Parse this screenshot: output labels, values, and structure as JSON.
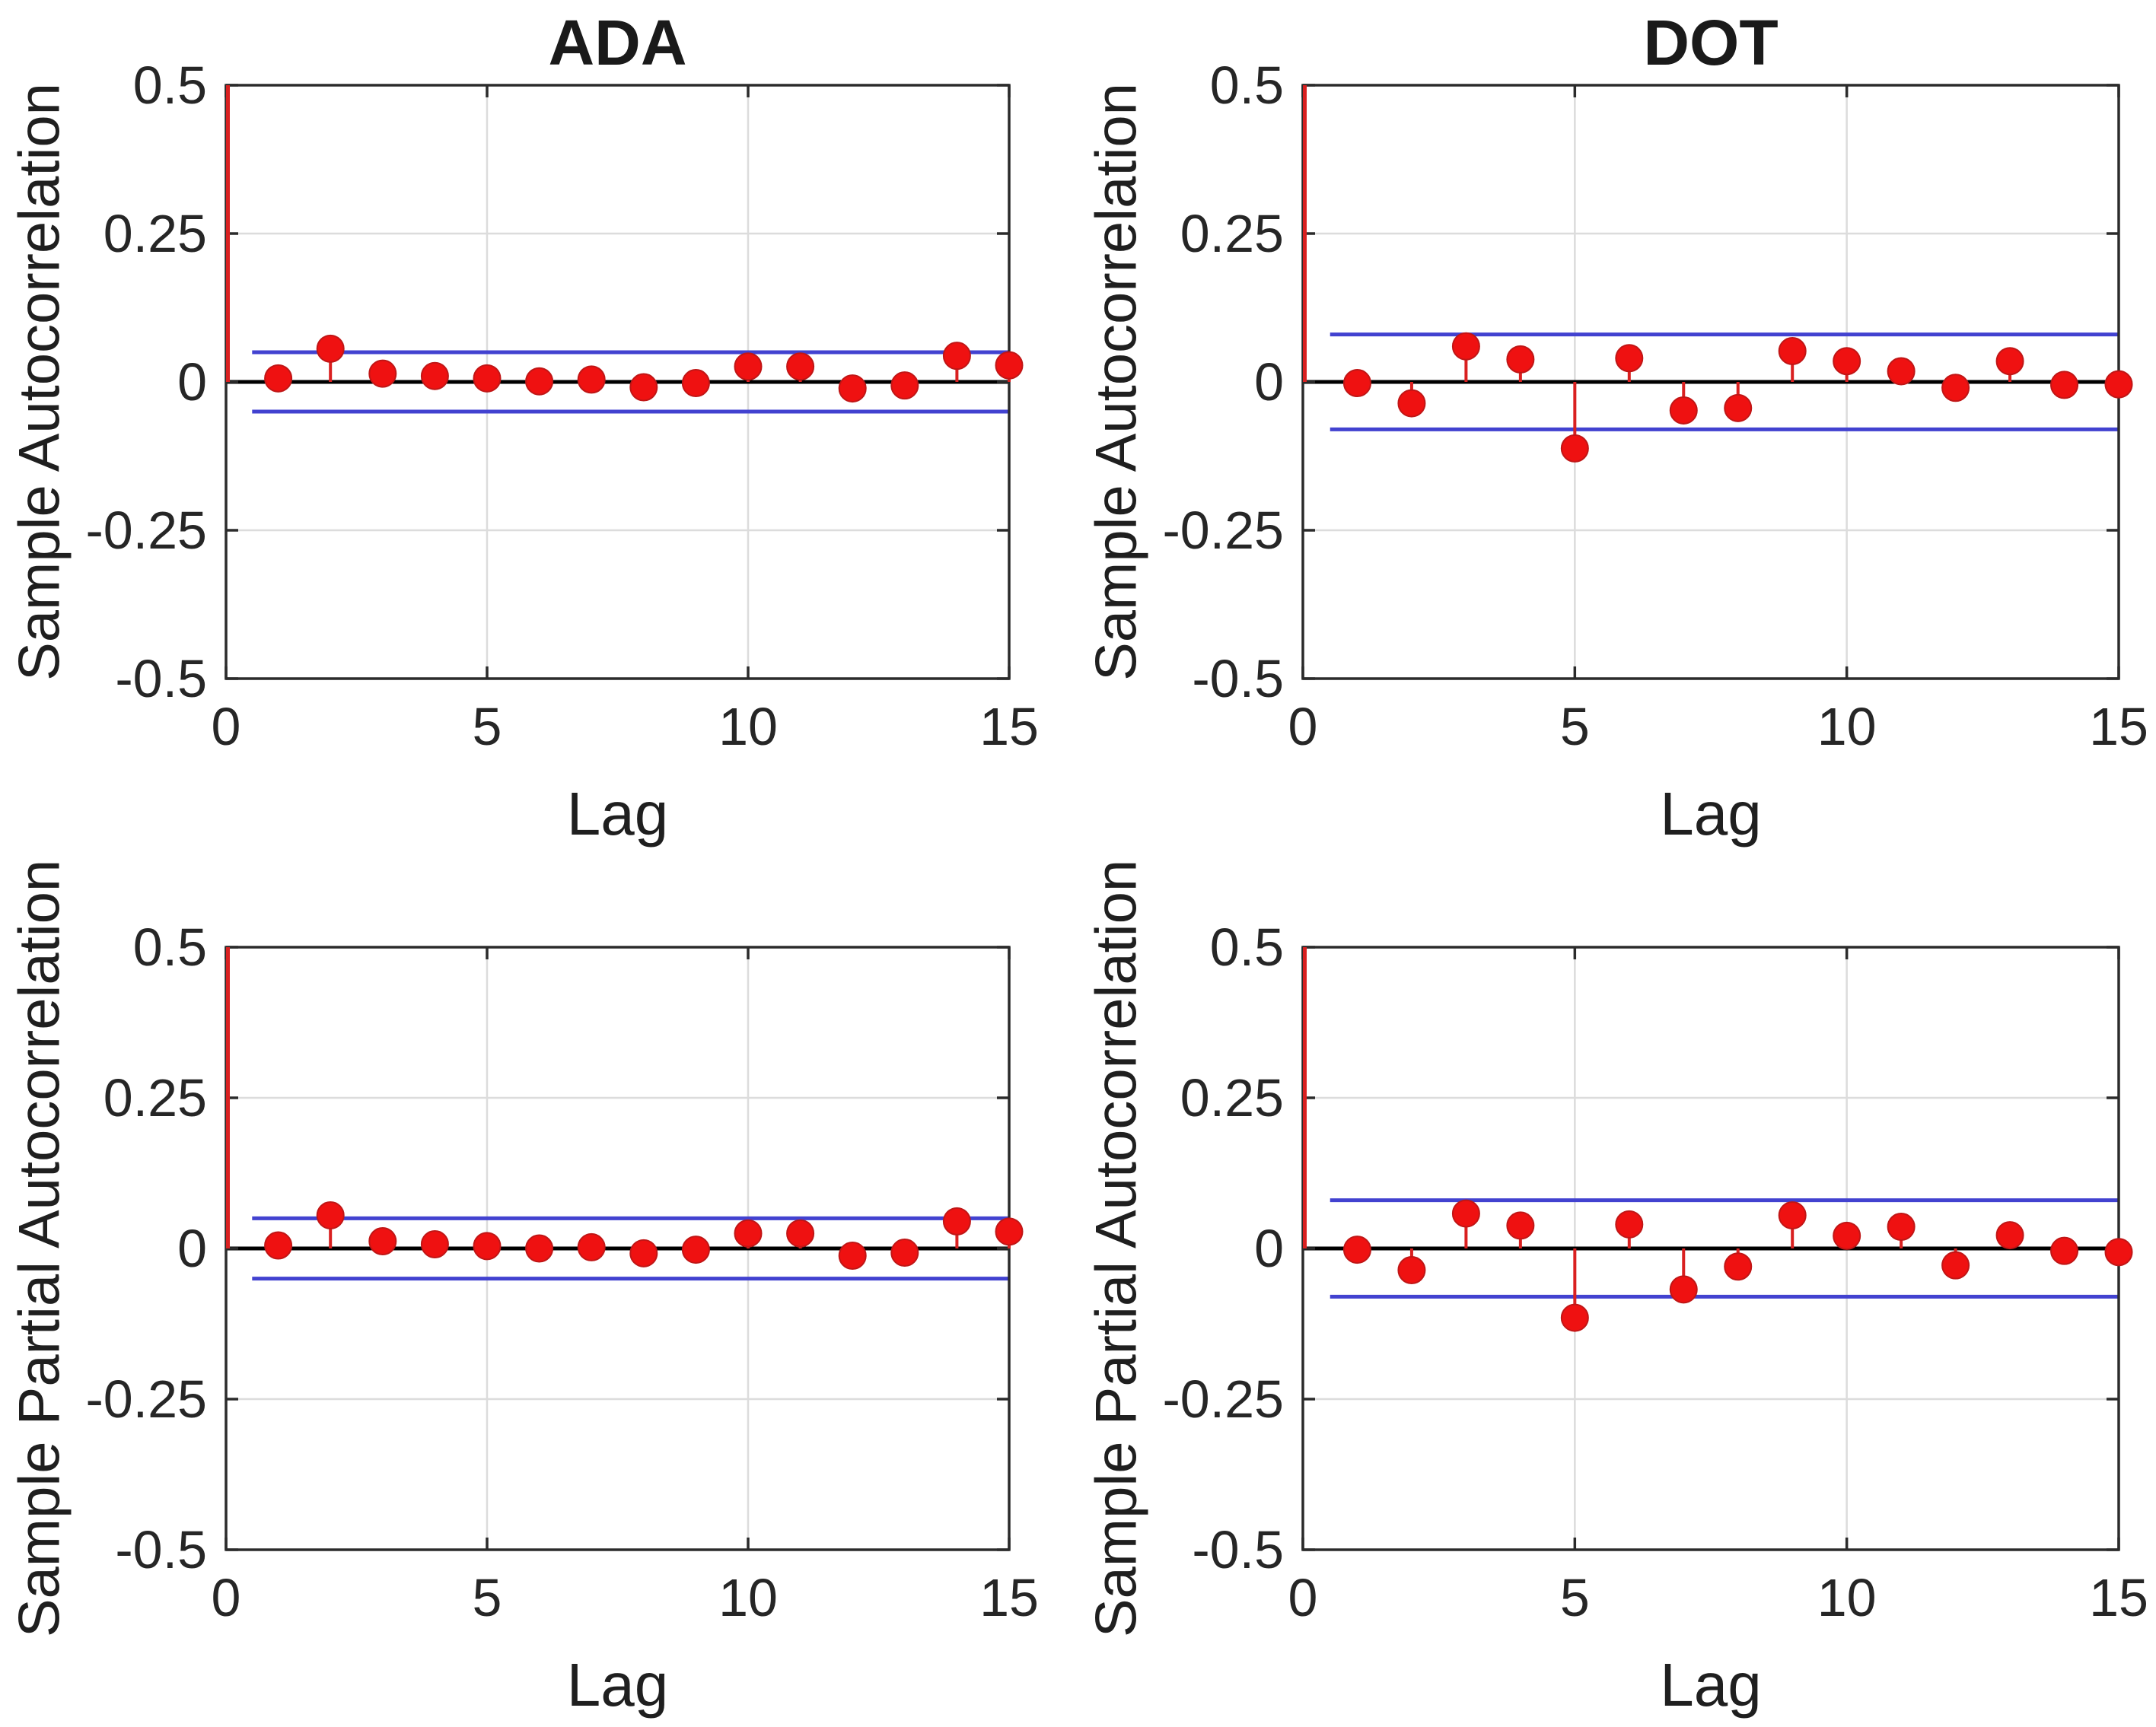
{
  "figure": {
    "background": "#ffffff",
    "colors": {
      "stem_line": "#d92020",
      "marker_fill": "#ef1111",
      "marker_edge": "#c01616",
      "confidence_line": "#4242d0",
      "zero_line": "#000000",
      "grid_line": "#dcdcdc",
      "axis_box": "#2b2b2b",
      "text": "#262626"
    },
    "xlabel": "Lag",
    "x_ticks": [
      0,
      5,
      10,
      15
    ],
    "x_tick_labels": [
      "0",
      "5",
      "10",
      "15"
    ],
    "y_ticks": [
      0.5,
      0.25,
      0,
      -0.25,
      -0.5
    ],
    "y_tick_labels": [
      "0.5",
      "0.25",
      "0",
      "-0.25",
      "-0.5"
    ],
    "xlim": [
      0,
      15
    ],
    "ylim": [
      -0.5,
      0.5
    ]
  },
  "chart_data": [
    {
      "type": "stem",
      "title": "ADA",
      "ylabel": "Sample Autocorrelation",
      "xlabel": "Lag",
      "xlim": [
        0,
        15
      ],
      "ylim": [
        -0.5,
        0.5
      ],
      "grid": true,
      "lag0_value": 1.0,
      "confidence_bound": 0.05,
      "lags": [
        1,
        2,
        3,
        4,
        5,
        6,
        7,
        8,
        9,
        10,
        11,
        12,
        13,
        14,
        15
      ],
      "values": [
        0.006,
        0.056,
        0.014,
        0.01,
        0.006,
        0.001,
        0.004,
        -0.009,
        -0.002,
        0.026,
        0.026,
        -0.011,
        -0.006,
        0.044,
        0.028
      ]
    },
    {
      "type": "stem",
      "title": "DOT",
      "ylabel": "Sample Autocorrelation",
      "xlabel": "Lag",
      "xlim": [
        0,
        15
      ],
      "ylim": [
        -0.5,
        0.5
      ],
      "grid": true,
      "lag0_value": 1.0,
      "confidence_bound": 0.08,
      "lags": [
        1,
        2,
        3,
        4,
        5,
        6,
        7,
        8,
        9,
        10,
        11,
        12,
        13,
        14,
        15
      ],
      "values": [
        -0.002,
        -0.036,
        0.06,
        0.038,
        -0.112,
        0.04,
        -0.048,
        -0.044,
        0.052,
        0.035,
        0.018,
        -0.01,
        0.035,
        -0.005,
        -0.004
      ]
    },
    {
      "type": "stem",
      "title": "",
      "ylabel": "Sample Partial Autocorrelation",
      "xlabel": "Lag",
      "xlim": [
        0,
        15
      ],
      "ylim": [
        -0.5,
        0.5
      ],
      "grid": true,
      "lag0_value": 1.0,
      "confidence_bound": 0.05,
      "lags": [
        1,
        2,
        3,
        4,
        5,
        6,
        7,
        8,
        9,
        10,
        11,
        12,
        13,
        14,
        15
      ],
      "values": [
        0.005,
        0.055,
        0.012,
        0.007,
        0.004,
        0.0,
        0.002,
        -0.008,
        -0.002,
        0.025,
        0.025,
        -0.012,
        -0.007,
        0.045,
        0.028
      ]
    },
    {
      "type": "stem",
      "title": "",
      "ylabel": "Sample Partial Autocorrelation",
      "xlabel": "Lag",
      "xlim": [
        0,
        15
      ],
      "ylim": [
        -0.5,
        0.5
      ],
      "grid": true,
      "lag0_value": 1.0,
      "confidence_bound": 0.08,
      "lags": [
        1,
        2,
        3,
        4,
        5,
        6,
        7,
        8,
        9,
        10,
        11,
        12,
        13,
        14,
        15
      ],
      "values": [
        -0.002,
        -0.036,
        0.058,
        0.038,
        -0.115,
        0.04,
        -0.068,
        -0.03,
        0.055,
        0.021,
        0.036,
        -0.028,
        0.022,
        -0.004,
        -0.006
      ]
    }
  ]
}
